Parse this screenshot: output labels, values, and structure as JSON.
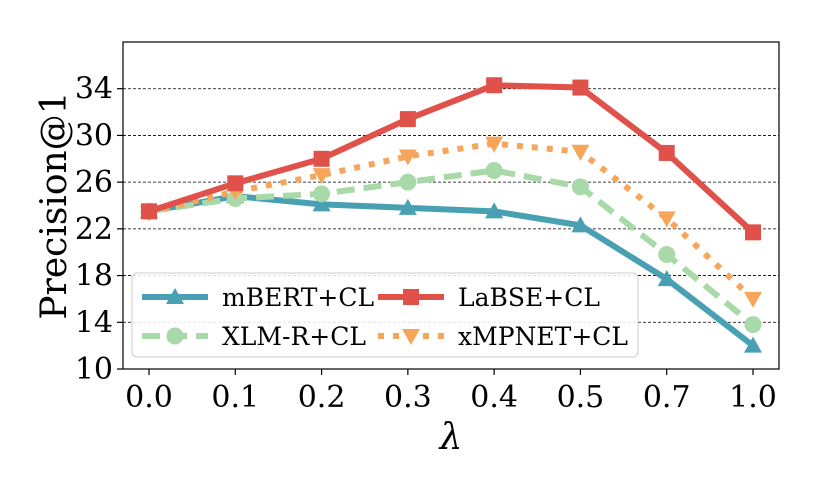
{
  "chart_data": {
    "type": "line",
    "xlabel": "λ",
    "ylabel": "Precision@1",
    "categories": [
      "0.0",
      "0.1",
      "0.2",
      "0.3",
      "0.4",
      "0.5",
      "0.7",
      "1.0"
    ],
    "ylim": [
      10,
      38
    ],
    "yticks": [
      "10",
      "14",
      "18",
      "22",
      "26",
      "30",
      "34"
    ],
    "grid": "horizontal dashed",
    "legend_position": "bottom-left",
    "series": [
      {
        "name": "mBERT+CL",
        "color": "#48a0b2",
        "marker": "triangle-up",
        "dash": "solid",
        "values": [
          23.5,
          24.8,
          24.1,
          23.8,
          23.5,
          22.3,
          17.7,
          12.0
        ]
      },
      {
        "name": "LaBSE+CL",
        "color": "#e0514a",
        "marker": "square",
        "dash": "solid",
        "values": [
          23.5,
          25.9,
          28.0,
          31.4,
          34.3,
          34.1,
          28.5,
          21.7
        ]
      },
      {
        "name": "XLM-R+CL",
        "color": "#a8d9a8",
        "marker": "circle",
        "dash": "dashed",
        "values": [
          23.5,
          24.6,
          25.0,
          26.0,
          27.0,
          25.6,
          19.8,
          13.8
        ]
      },
      {
        "name": "xMPNET+CL",
        "color": "#f7a55a",
        "marker": "triangle-down",
        "dash": "dotted",
        "values": [
          23.4,
          25.2,
          26.6,
          28.2,
          29.3,
          28.6,
          22.9,
          16.0
        ]
      }
    ]
  }
}
